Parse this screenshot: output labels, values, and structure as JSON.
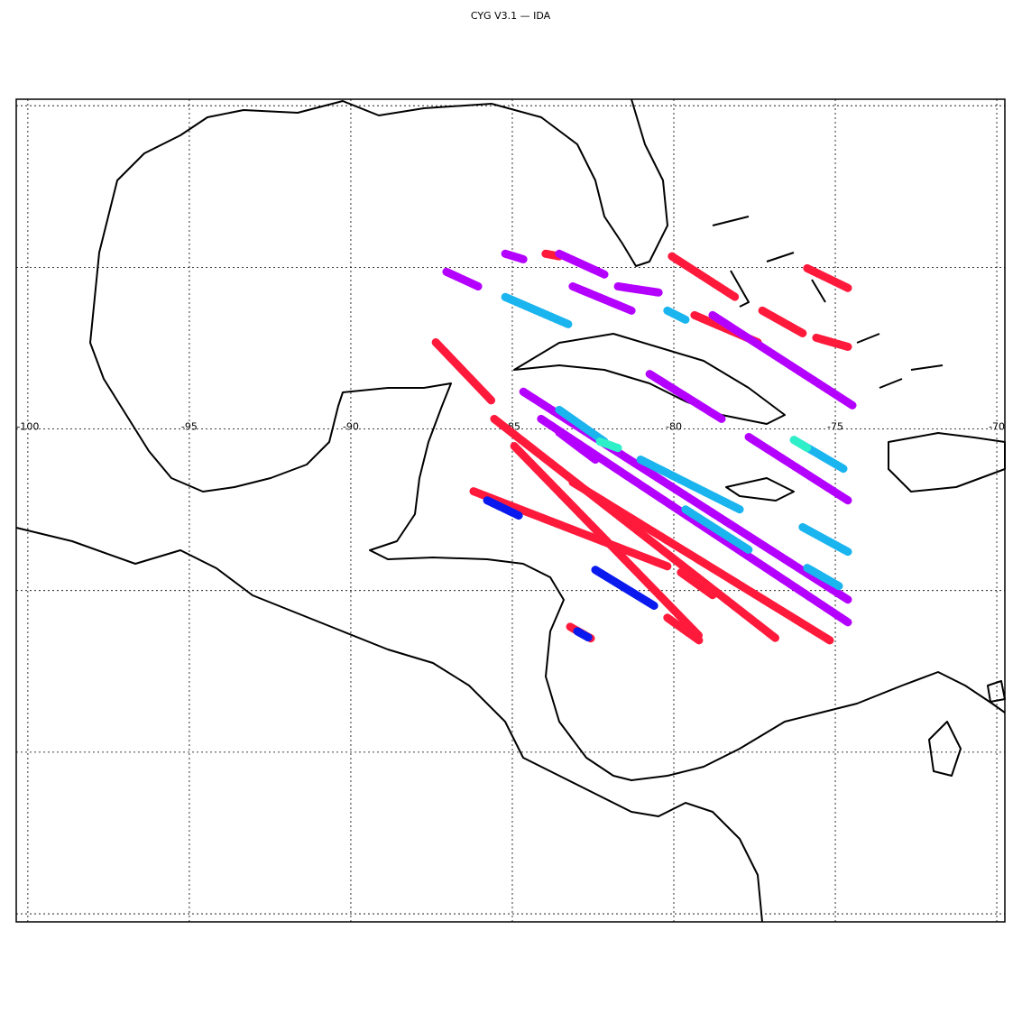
{
  "chart_data": {
    "type": "map",
    "title": "CYG V3.1  —  IDA",
    "xlim": [
      -100.36,
      -69.75
    ],
    "ylim": [
      4.75,
      30.2
    ],
    "xticks": [
      -100,
      -95,
      -90,
      -85,
      -80,
      -75,
      -70
    ],
    "yticks": [
      5,
      10,
      15,
      20,
      25,
      30
    ],
    "grid": true,
    "tracks": [
      {
        "color": "#ff1a3c",
        "lon": [
          -87.37,
          -85.64
        ],
        "lat": [
          22.68,
          20.87
        ]
      },
      {
        "color": "#ff1a3c",
        "lon": [
          -85.56,
          -76.84
        ],
        "lat": [
          20.31,
          13.52
        ]
      },
      {
        "color": "#ff1a3c",
        "lon": [
          -84.94,
          -79.22
        ],
        "lat": [
          19.47,
          13.6
        ]
      },
      {
        "color": "#ff1a3c",
        "lon": [
          -86.2,
          -80.2
        ],
        "lat": [
          18.07,
          15.75
        ]
      },
      {
        "color": "#0a1aee",
        "lon": [
          -85.78,
          -84.8
        ],
        "lat": [
          17.79,
          17.32
        ]
      },
      {
        "color": "#ff1a3c",
        "lon": [
          -83.13,
          -75.17
        ],
        "lat": [
          18.35,
          13.46
        ]
      },
      {
        "color": "#ff1a3c",
        "lon": [
          -80.2,
          -79.22
        ],
        "lat": [
          14.16,
          13.46
        ]
      },
      {
        "color": "#ff1a3c",
        "lon": [
          -79.78,
          -78.8
        ],
        "lat": [
          15.56,
          14.86
        ]
      },
      {
        "color": "#ff1a3c",
        "lon": [
          -83.21,
          -82.57
        ],
        "lat": [
          13.88,
          13.52
        ]
      },
      {
        "color": "#0a1aee",
        "lon": [
          -82.99,
          -82.65
        ],
        "lat": [
          13.74,
          13.55
        ]
      },
      {
        "color": "#0a1aee",
        "lon": [
          -82.43,
          -80.61
        ],
        "lat": [
          15.64,
          14.53
        ]
      },
      {
        "color": "#ff1a3c",
        "lon": [
          -80.06,
          -78.1
        ],
        "lat": [
          25.34,
          24.08
        ]
      },
      {
        "color": "#ff1a3c",
        "lon": [
          -77.26,
          -76.01
        ],
        "lat": [
          23.66,
          22.96
        ]
      },
      {
        "color": "#ff1a3c",
        "lon": [
          -75.87,
          -74.61
        ],
        "lat": [
          24.97,
          24.36
        ]
      },
      {
        "color": "#ff1a3c",
        "lon": [
          -75.59,
          -74.61
        ],
        "lat": [
          22.82,
          22.54
        ]
      },
      {
        "color": "#ff1a3c",
        "lon": [
          -79.36,
          -77.4
        ],
        "lat": [
          23.52,
          22.68
        ]
      },
      {
        "color": "#ff1a3c",
        "lon": [
          -83.97,
          -83.55
        ],
        "lat": [
          25.42,
          25.34
        ]
      },
      {
        "color": "#b400ff",
        "lon": [
          -85.22,
          -84.66
        ],
        "lat": [
          25.42,
          25.25
        ]
      },
      {
        "color": "#b400ff",
        "lon": [
          -83.55,
          -82.15
        ],
        "lat": [
          25.42,
          24.78
        ]
      },
      {
        "color": "#b400ff",
        "lon": [
          -83.13,
          -81.31
        ],
        "lat": [
          24.41,
          23.66
        ]
      },
      {
        "color": "#b400ff",
        "lon": [
          -81.73,
          -80.47
        ],
        "lat": [
          24.41,
          24.22
        ]
      },
      {
        "color": "#b400ff",
        "lon": [
          -78.8,
          -74.47
        ],
        "lat": [
          23.52,
          20.73
        ]
      },
      {
        "color": "#b400ff",
        "lon": [
          -80.75,
          -78.52
        ],
        "lat": [
          21.7,
          20.31
        ]
      },
      {
        "color": "#b400ff",
        "lon": [
          -84.66,
          -74.61
        ],
        "lat": [
          21.15,
          14.72
        ]
      },
      {
        "color": "#b400ff",
        "lon": [
          -84.11,
          -74.61
        ],
        "lat": [
          20.31,
          14.02
        ]
      },
      {
        "color": "#b400ff",
        "lon": [
          -77.68,
          -74.61
        ],
        "lat": [
          19.75,
          17.79
        ]
      },
      {
        "color": "#b400ff",
        "lon": [
          -83.55,
          -82.43
        ],
        "lat": [
          19.89,
          19.05
        ]
      },
      {
        "color": "#b400ff",
        "lon": [
          -87.04,
          -86.06
        ],
        "lat": [
          24.86,
          24.41
        ]
      },
      {
        "color": "#1ab4ee",
        "lon": [
          -83.55,
          -82.15
        ],
        "lat": [
          20.59,
          19.61
        ]
      },
      {
        "color": "#1ab4ee",
        "lon": [
          -81.03,
          -77.96
        ],
        "lat": [
          19.05,
          17.51
        ]
      },
      {
        "color": "#1ab4ee",
        "lon": [
          -85.22,
          -83.27
        ],
        "lat": [
          24.08,
          23.24
        ]
      },
      {
        "color": "#1ab4ee",
        "lon": [
          -80.2,
          -79.64
        ],
        "lat": [
          23.66,
          23.38
        ]
      },
      {
        "color": "#1ab4ee",
        "lon": [
          -76.28,
          -74.75
        ],
        "lat": [
          19.66,
          18.77
        ]
      },
      {
        "color": "#1ab4ee",
        "lon": [
          -76.01,
          -74.61
        ],
        "lat": [
          16.96,
          16.2
        ]
      },
      {
        "color": "#1ab4ee",
        "lon": [
          -79.64,
          -77.68
        ],
        "lat": [
          17.51,
          16.26
        ]
      },
      {
        "color": "#1ab4ee",
        "lon": [
          -75.87,
          -74.89
        ],
        "lat": [
          15.7,
          15.14
        ]
      },
      {
        "color": "#2ef0c8",
        "lon": [
          -82.29,
          -81.73
        ],
        "lat": [
          19.61,
          19.41
        ]
      },
      {
        "color": "#2ef0c8",
        "lon": [
          -76.28,
          -75.87
        ],
        "lat": [
          19.66,
          19.41
        ]
      }
    ]
  }
}
